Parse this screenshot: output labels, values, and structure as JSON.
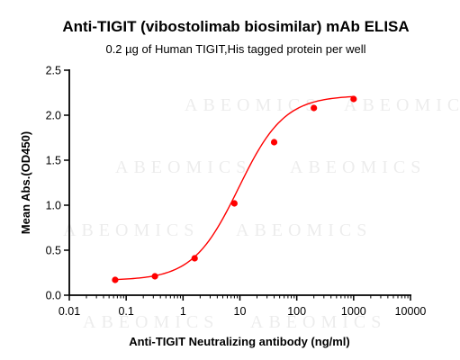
{
  "chart_data": {
    "type": "scatter",
    "title": "Anti-TIGIT (vibostolimab biosimilar) mAb ELISA",
    "subtitle": "0.2 µg of Human TIGIT,His tagged protein per well",
    "xlabel": "Anti-TIGIT Neutralizing antibody (ng/ml)",
    "ylabel": "Mean Abs.(OD450)",
    "x_scale": "log",
    "xlim": [
      0.01,
      10000
    ],
    "ylim": [
      0,
      2.5
    ],
    "x_ticks": [
      "0.01",
      "0.1",
      "1",
      "10",
      "100",
      "1000",
      "10000"
    ],
    "y_ticks": [
      "0.0",
      "0.5",
      "1.0",
      "1.5",
      "2.0",
      "2.5"
    ],
    "series": [
      {
        "x": [
          0.064,
          0.32,
          1.6,
          8,
          40,
          200,
          1000
        ],
        "y": [
          0.17,
          0.21,
          0.41,
          1.02,
          1.7,
          2.08,
          2.18
        ],
        "color": "#ff0000",
        "fit": "4PL sigmoid"
      }
    ],
    "grid": false,
    "legend": "none"
  },
  "watermark": "ABEOMICS"
}
